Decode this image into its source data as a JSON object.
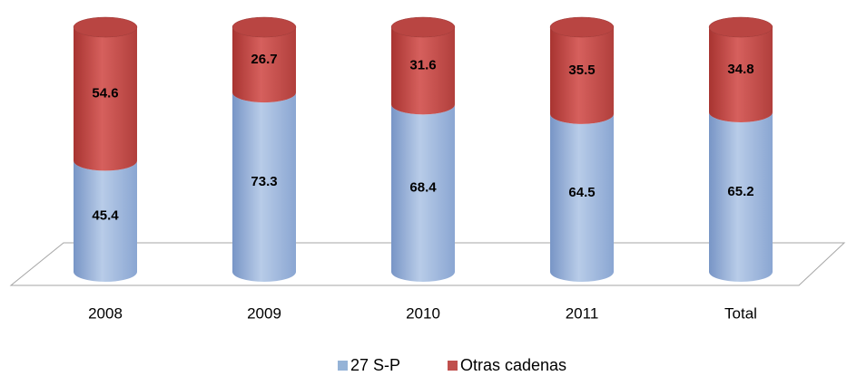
{
  "chart_data": {
    "type": "bar",
    "stacked": true,
    "categories": [
      "2008",
      "2009",
      "2010",
      "2011",
      "Total"
    ],
    "series": [
      {
        "name": "27 S-P",
        "color": "#95b3d7",
        "values": [
          45.4,
          73.3,
          68.4,
          64.5,
          65.2
        ]
      },
      {
        "name": "Otras cadenas",
        "color": "#c0504d",
        "values": [
          54.6,
          26.7,
          31.6,
          35.5,
          34.8
        ]
      }
    ],
    "ylim": [
      0,
      100
    ],
    "legend": "bottom"
  }
}
